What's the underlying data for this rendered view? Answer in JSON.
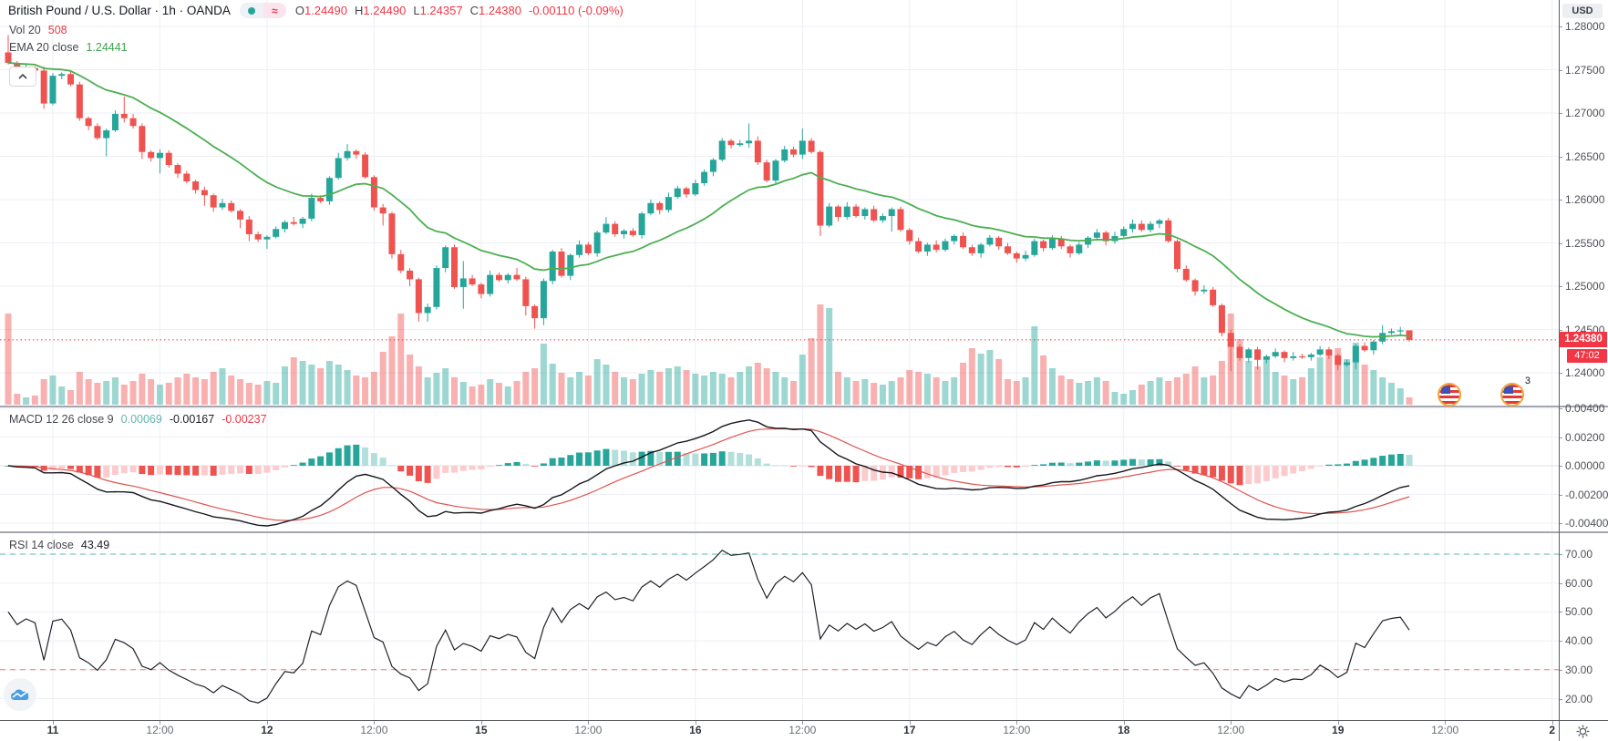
{
  "header": {
    "title": "British Pound / U.S. Dollar · 1h · OANDA",
    "market_buttons": {
      "dot": "market-status-dot",
      "approx_label": "≈"
    },
    "ohlc": {
      "o_label": "O",
      "o_value": "1.24490",
      "h_label": "H",
      "h_value": "1.24490",
      "l_label": "L",
      "l_value": "1.24357",
      "c_label": "C",
      "c_value": "1.24380",
      "change": "-0.00110 (-0.09%)"
    }
  },
  "legend": {
    "volume": {
      "label": "Vol 20",
      "value": "508"
    },
    "ema": {
      "label": "EMA 20 close",
      "value": "1.24441"
    }
  },
  "macd_pane": {
    "label": "MACD 12 26 close 9",
    "hist_value": "0.00069",
    "macd_value": "-0.00167",
    "signal_value": "-0.00237"
  },
  "rsi_pane": {
    "label": "RSI 14 close",
    "value": "43.49"
  },
  "axis": {
    "currency_badge": "USD"
  },
  "price_badge": {
    "value": "1.24380",
    "countdown": "47:02"
  },
  "events": {
    "superscript": "3"
  },
  "icons": {
    "collapse": "chevron-up-icon",
    "settings": "gear-icon",
    "events": "us-flag-icon",
    "logo": "area-chart-icon",
    "market": "dot-icon",
    "approx": "almost-equal-icon"
  },
  "colors": {
    "up": "#26a69a",
    "down": "#ef5350",
    "vol_up": "#26a69a73",
    "vol_down": "#ef535073",
    "ema": "#4caf50",
    "grid": "#edeff4",
    "macd_line": "#16181d",
    "signal_line": "#e0544f",
    "hist_pos": "#26a69a",
    "hist_pos_light": "#b2dfdb",
    "hist_neg": "#ef5350",
    "hist_neg_light": "#fccbcd",
    "rsi_line": "#202227",
    "rsi_upper": "#26a69a",
    "rsi_lower": "#ef5350",
    "price_line": "#f23645"
  },
  "chart_data": {
    "type": "candlestick",
    "title": "British Pound / U.S. Dollar",
    "interval": "1h",
    "exchange": "OANDA",
    "price_axis": {
      "ticks": [
        "1.28000",
        "1.27500",
        "1.27000",
        "1.26500",
        "1.26000",
        "1.25500",
        "1.25000",
        "1.24500",
        "1.24000"
      ],
      "currency": "USD"
    },
    "macd_axis": {
      "ticks": [
        "0.00400",
        "0.00200",
        "0.00000",
        "-0.00200",
        "-0.00400"
      ]
    },
    "rsi_axis": {
      "ticks": [
        "70.00",
        "60.00",
        "50.00",
        "40.00",
        "30.00",
        "20.00"
      ],
      "upper_band": 70,
      "lower_band": 30
    },
    "time_axis": {
      "ticks": [
        {
          "i": 5,
          "label": "11",
          "major": true
        },
        {
          "i": 17,
          "label": "12:00",
          "major": false
        },
        {
          "i": 29,
          "label": "12",
          "major": true
        },
        {
          "i": 41,
          "label": "12:00",
          "major": false
        },
        {
          "i": 53,
          "label": "15",
          "major": true
        },
        {
          "i": 65,
          "label": "12:00",
          "major": false
        },
        {
          "i": 77,
          "label": "16",
          "major": true
        },
        {
          "i": 89,
          "label": "12:00",
          "major": false
        },
        {
          "i": 101,
          "label": "17",
          "major": true
        },
        {
          "i": 113,
          "label": "12:00",
          "major": false
        },
        {
          "i": 125,
          "label": "18",
          "major": true
        },
        {
          "i": 137,
          "label": "12:00",
          "major": false
        },
        {
          "i": 149,
          "label": "19",
          "major": true
        },
        {
          "i": 161,
          "label": "12:00",
          "major": false
        },
        {
          "i": 173,
          "label": "2",
          "major": true
        }
      ]
    },
    "price_line": {
      "value": 1.2438,
      "label": "1.24380",
      "countdown": "47:02"
    },
    "indicators": {
      "ema": {
        "period": 20,
        "source": "close",
        "last": 1.24441
      },
      "macd": {
        "fast": 12,
        "slow": 26,
        "source": "close",
        "signal": 9,
        "hist_last": 0.00069,
        "macd_last": -0.00167,
        "signal_last": -0.00237
      },
      "rsi": {
        "period": 14,
        "source": "close",
        "last": 43.49
      },
      "volume": {
        "ma": 20,
        "last": 508
      }
    },
    "candles": {
      "first_open": 1.277,
      "closes": [
        1.2758,
        1.2748,
        1.2752,
        1.2749,
        1.2711,
        1.2743,
        1.2745,
        1.2733,
        1.2694,
        1.2685,
        1.2671,
        1.268,
        1.2699,
        1.2694,
        1.2685,
        1.2655,
        1.2648,
        1.2654,
        1.264,
        1.263,
        1.2621,
        1.2611,
        1.2605,
        1.2591,
        1.2596,
        1.2587,
        1.2577,
        1.256,
        1.2554,
        1.2557,
        1.2566,
        1.2574,
        1.2572,
        1.2578,
        1.2602,
        1.2598,
        1.2625,
        1.2648,
        1.2656,
        1.2652,
        1.2626,
        1.2591,
        1.2584,
        1.2537,
        1.2518,
        1.2508,
        1.2469,
        1.2476,
        1.2521,
        1.2545,
        1.2499,
        1.2509,
        1.2502,
        1.2491,
        1.2513,
        1.2507,
        1.2513,
        1.2508,
        1.2477,
        1.2463,
        1.2506,
        1.254,
        1.2512,
        1.2536,
        1.2548,
        1.2538,
        1.2562,
        1.2572,
        1.256,
        1.2564,
        1.2559,
        1.2584,
        1.2596,
        1.2588,
        1.2603,
        1.2613,
        1.2606,
        1.2619,
        1.2632,
        1.2646,
        1.2668,
        1.2663,
        1.2665,
        1.2668,
        1.2643,
        1.2622,
        1.2645,
        1.2658,
        1.2652,
        1.2668,
        1.2655,
        1.257,
        1.2592,
        1.258,
        1.2592,
        1.2581,
        1.2589,
        1.2576,
        1.2581,
        1.2589,
        1.2565,
        1.2552,
        1.254,
        1.2548,
        1.2542,
        1.2552,
        1.2558,
        1.2545,
        1.2538,
        1.2548,
        1.2556,
        1.2546,
        1.2538,
        1.2532,
        1.2536,
        1.2552,
        1.2544,
        1.2555,
        1.2546,
        1.2538,
        1.2548,
        1.2556,
        1.2562,
        1.2552,
        1.2558,
        1.2566,
        1.2572,
        1.2565,
        1.2572,
        1.2576,
        1.2552,
        1.252,
        1.2507,
        1.2494,
        1.2496,
        1.2478,
        1.2446,
        1.243,
        1.2417,
        1.2427,
        1.2415,
        1.2419,
        1.2424,
        1.2417,
        1.2419,
        1.2418,
        1.2421,
        1.2427,
        1.242,
        1.2409,
        1.2412,
        1.2431,
        1.2426,
        1.2436,
        1.2446,
        1.2448,
        1.2449,
        1.2438
      ],
      "wick_up_default": [
        3,
        2,
        4,
        2,
        5,
        3,
        2,
        4,
        3,
        2
      ],
      "wick_dn_default": [
        2,
        4,
        2,
        5,
        3,
        2,
        4,
        2,
        3,
        5
      ],
      "wick_up_overrides": {
        "0": 20,
        "13": 20,
        "32": 6,
        "37": 6,
        "38": 8,
        "51": 20,
        "57": 8,
        "67": 8,
        "83": 20,
        "89": 14,
        "126": 5,
        "154": 9,
        "156": 4,
        "157": 0
      },
      "wick_dn_overrides": {
        "4": 6,
        "11": 21,
        "15": 8,
        "17": 18,
        "22": 12,
        "26": 10,
        "27": 8,
        "29": 11,
        "42": 14,
        "45": 8,
        "46": 10,
        "47": 10,
        "51": 25,
        "58": 11,
        "59": 12,
        "60": 8,
        "91": 12,
        "99": 18,
        "137": 28,
        "140": 11,
        "148": 4,
        "149": 6,
        "151": 8,
        "157": 2
      }
    },
    "volume_relative": [
      100,
      12,
      8,
      10,
      28,
      32,
      20,
      16,
      36,
      28,
      24,
      26,
      30,
      22,
      26,
      34,
      28,
      22,
      24,
      30,
      34,
      30,
      28,
      36,
      40,
      32,
      28,
      24,
      22,
      26,
      24,
      42,
      52,
      48,
      44,
      40,
      48,
      44,
      38,
      32,
      30,
      36,
      58,
      75,
      100,
      55,
      42,
      30,
      35,
      40,
      30,
      25,
      20,
      22,
      28,
      24,
      20,
      26,
      36,
      40,
      67,
      45,
      35,
      30,
      36,
      32,
      50,
      44,
      36,
      30,
      28,
      34,
      38,
      36,
      40,
      42,
      38,
      34,
      32,
      36,
      34,
      30,
      36,
      42,
      46,
      40,
      36,
      30,
      26,
      55,
      73,
      110,
      106,
      36,
      30,
      26,
      28,
      24,
      22,
      26,
      30,
      38,
      36,
      34,
      30,
      26,
      30,
      46,
      62,
      56,
      60,
      50,
      28,
      26,
      30,
      86,
      54,
      40,
      32,
      28,
      24,
      26,
      30,
      26,
      14,
      12,
      16,
      22,
      26,
      30,
      26,
      30,
      34,
      42,
      30,
      32,
      48,
      100,
      72,
      48,
      42,
      50,
      36,
      32,
      28,
      30,
      40,
      52,
      58,
      62,
      50,
      68,
      44,
      38,
      30,
      24,
      18,
      8
    ]
  }
}
